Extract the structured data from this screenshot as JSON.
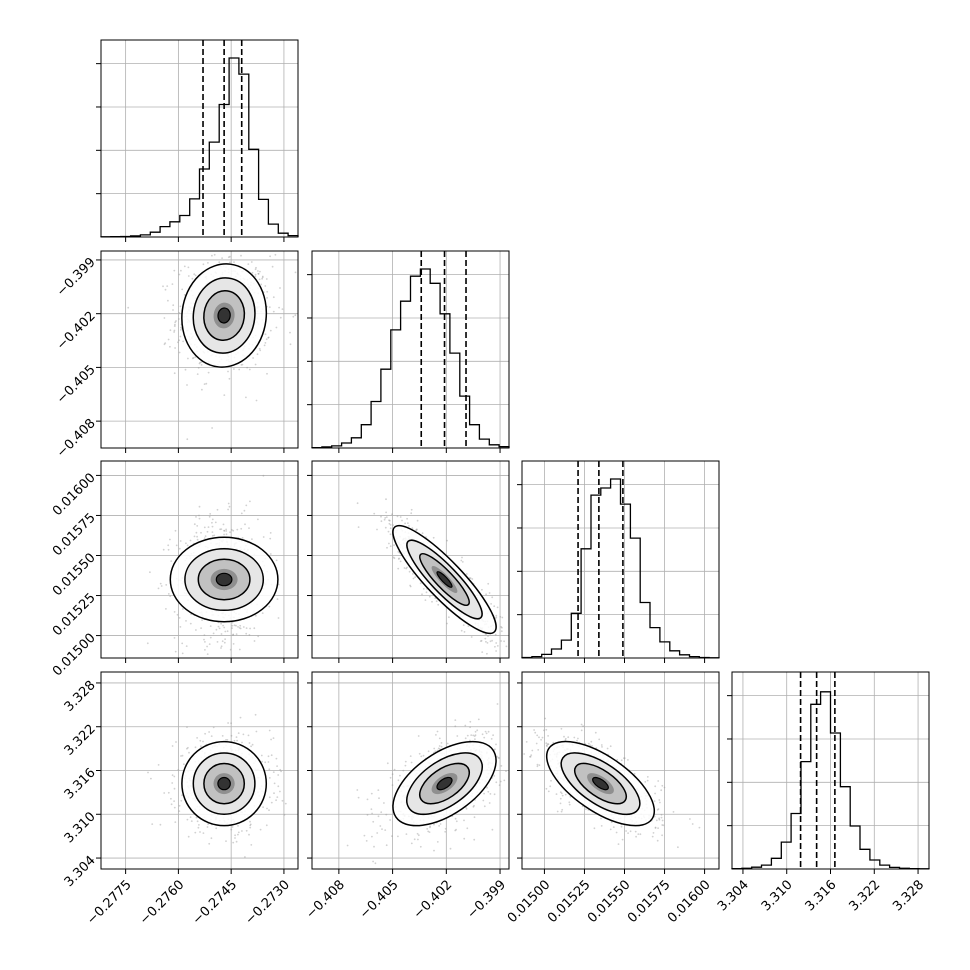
{
  "chart_data": {
    "type": "corner",
    "grid": true,
    "colors": {
      "line": "#000000",
      "grid": "#b0b0b0",
      "scatter": "#9a9a9a",
      "background": "#ffffff"
    },
    "parameters": [
      {
        "id": "p0",
        "range": [
          -0.2782,
          -0.2726
        ],
        "ticks": [
          -0.2775,
          -0.276,
          -0.2745,
          -0.273
        ],
        "tick_labels": [
          "−0.2775",
          "−0.2760",
          "−0.2745",
          "−0.2730"
        ],
        "quantiles": [
          -0.2753,
          -0.2747,
          -0.2742
        ],
        "center": -0.2747,
        "sigma": 0.0005
      },
      {
        "id": "p1",
        "range": [
          -0.4095,
          -0.3985
        ],
        "ticks": [
          -0.408,
          -0.405,
          -0.402,
          -0.399
        ],
        "tick_labels": [
          "−0.408",
          "−0.405",
          "−0.402",
          "−0.399"
        ],
        "quantiles": [
          -0.4034,
          -0.4021,
          -0.4009
        ],
        "center": -0.4021,
        "sigma": 0.0012
      },
      {
        "id": "p2",
        "range": [
          0.01486,
          0.01609
        ],
        "ticks": [
          0.015,
          0.01525,
          0.0155,
          0.01575,
          0.016
        ],
        "tick_labels": [
          "0.01500",
          "0.01525",
          "0.01550",
          "0.01575",
          "0.01600"
        ],
        "quantiles": [
          0.01521,
          0.01534,
          0.01549
        ],
        "center": 0.01535,
        "sigma": 0.00014
      },
      {
        "id": "p3",
        "range": [
          3.3025,
          3.3295
        ],
        "ticks": [
          3.304,
          3.31,
          3.316,
          3.322,
          3.328
        ],
        "tick_labels": [
          "3.304",
          "3.310",
          "3.316",
          "3.322",
          "3.328"
        ],
        "quantiles": [
          3.3119,
          3.3141,
          3.3166
        ],
        "center": 3.3142,
        "sigma": 0.0024
      }
    ],
    "histograms": [
      [
        0.001,
        0.002,
        0.003,
        0.006,
        0.012,
        0.027,
        0.058,
        0.085,
        0.12,
        0.213,
        0.38,
        0.53,
        0.74,
        1.0,
        0.91,
        0.49,
        0.21,
        0.072,
        0.021,
        0.008
      ],
      [
        0.002,
        0.006,
        0.012,
        0.028,
        0.057,
        0.13,
        0.26,
        0.44,
        0.66,
        0.82,
        0.96,
        1.0,
        0.92,
        0.75,
        0.53,
        0.29,
        0.13,
        0.05,
        0.018,
        0.007
      ],
      [
        0.003,
        0.008,
        0.02,
        0.05,
        0.1,
        0.25,
        0.61,
        0.91,
        0.95,
        1.0,
        0.86,
        0.67,
        0.31,
        0.17,
        0.09,
        0.04,
        0.018,
        0.008,
        0.003,
        0.001
      ],
      [
        0.002,
        0.004,
        0.01,
        0.022,
        0.06,
        0.15,
        0.31,
        0.6,
        0.92,
        0.99,
        0.76,
        0.46,
        0.24,
        0.11,
        0.05,
        0.022,
        0.009,
        0.004,
        0.002,
        0.001
      ]
    ],
    "correlations": {
      "1-0": 0.05,
      "2-0": 0.0,
      "2-1": -0.88,
      "3-0": 0.0,
      "3-1": 0.55,
      "3-2": -0.65
    }
  }
}
